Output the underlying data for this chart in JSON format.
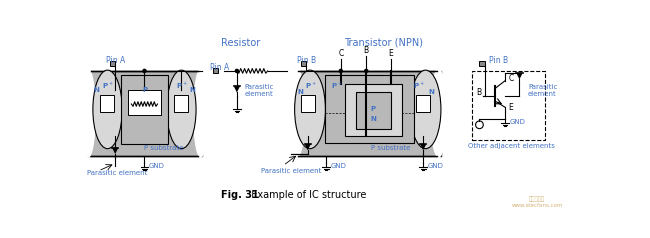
{
  "fig_label": "Fig. 31",
  "fig_title": "  Example of IC structure",
  "section1_title": "Resistor",
  "section2_title": "Transistor (NPN)",
  "bg_color": "#ffffff",
  "gray_mid": "#b8b8b8",
  "gray_light": "#d8d8d8",
  "gray_dark": "#909090",
  "connector_color": "#888888",
  "text_blue": "#4472C4",
  "watermark_color": "#c8a055"
}
